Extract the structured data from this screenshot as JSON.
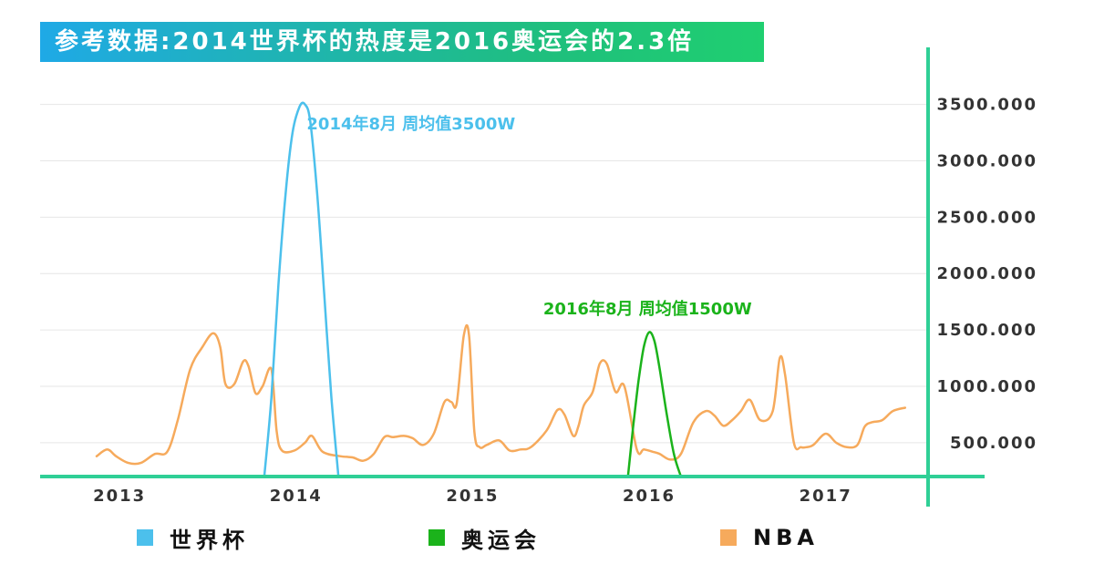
{
  "title": "参考数据:2014世界杯的热度是2016奥运会的2.3倍",
  "chart_data": {
    "type": "line",
    "y_ticks": [
      "500.000",
      "1000.000",
      "1500.000",
      "2000.000",
      "2500.000",
      "3000.000",
      "3500.000"
    ],
    "x_ticks": [
      {
        "label": "2013",
        "x": 2013.0
      },
      {
        "label": "2014",
        "x": 2014.0
      },
      {
        "label": "2015",
        "x": 2015.0
      },
      {
        "label": "2016",
        "x": 2016.0
      },
      {
        "label": "2017",
        "x": 2017.0
      }
    ],
    "xlim": [
      2012.55,
      2017.58
    ],
    "ylim": [
      200,
      3650
    ],
    "grid": true,
    "series": [
      {
        "name": "世界杯",
        "color": "#4cc0ec",
        "x": [
          2013.82,
          2013.86,
          2013.9,
          2013.94,
          2013.98,
          2014.02,
          2014.05,
          2014.08,
          2014.12,
          2014.16,
          2014.2,
          2014.24
        ],
        "y": [
          200,
          900,
          1900,
          2700,
          3250,
          3480,
          3500,
          3350,
          2700,
          1800,
          900,
          200
        ]
      },
      {
        "name": "奥运会",
        "color": "#1bb31b",
        "x": [
          2015.88,
          2015.91,
          2015.94,
          2015.97,
          2016.0,
          2016.03,
          2016.06,
          2016.1,
          2016.14,
          2016.18
        ],
        "y": [
          200,
          650,
          1050,
          1350,
          1480,
          1400,
          1150,
          750,
          400,
          200
        ]
      },
      {
        "name": "NBA",
        "color": "#f6aa5c",
        "x": [
          2012.87,
          2012.93,
          2012.98,
          2013.05,
          2013.12,
          2013.2,
          2013.27,
          2013.33,
          2013.4,
          2013.47,
          2013.53,
          2013.57,
          2013.6,
          2013.65,
          2013.7,
          2013.73,
          2013.77,
          2013.81,
          2013.86,
          2013.89,
          2013.92,
          2013.99,
          2014.05,
          2014.09,
          2014.15,
          2014.25,
          2014.32,
          2014.38,
          2014.44,
          2014.5,
          2014.55,
          2014.61,
          2014.66,
          2014.72,
          2014.78,
          2014.84,
          2014.88,
          2014.91,
          2014.95,
          2014.98,
          2015.01,
          2015.04,
          2015.08,
          2015.15,
          2015.21,
          2015.27,
          2015.33,
          2015.42,
          2015.48,
          2015.52,
          2015.57,
          2015.6,
          2015.63,
          2015.68,
          2015.72,
          2015.76,
          2015.81,
          2015.86,
          2015.93,
          2015.97,
          2016.02,
          2016.06,
          2016.12,
          2016.18,
          2016.25,
          2016.32,
          2016.37,
          2016.42,
          2016.47,
          2016.52,
          2016.57,
          2016.63,
          2016.7,
          2016.74,
          2016.77,
          2016.82,
          2016.86,
          2016.89,
          2016.93,
          2017.0,
          2017.06,
          2017.12,
          2017.18,
          2017.22,
          2017.26,
          2017.32,
          2017.38,
          2017.45
        ],
        "y": [
          380,
          440,
          380,
          320,
          320,
          400,
          420,
          700,
          1150,
          1350,
          1470,
          1350,
          1020,
          1020,
          1220,
          1180,
          940,
          1000,
          1150,
          600,
          430,
          430,
          500,
          560,
          420,
          380,
          370,
          340,
          400,
          550,
          550,
          560,
          540,
          480,
          580,
          860,
          860,
          850,
          1450,
          1450,
          600,
          460,
          480,
          520,
          430,
          440,
          460,
          610,
          790,
          750,
          560,
          650,
          830,
          950,
          1200,
          1200,
          950,
          1000,
          440,
          440,
          420,
          400,
          350,
          400,
          680,
          780,
          740,
          650,
          700,
          780,
          880,
          700,
          780,
          1250,
          1100,
          500,
          460,
          460,
          480,
          580,
          500,
          460,
          480,
          640,
          680,
          700,
          780,
          810
        ]
      }
    ],
    "annotations": [
      {
        "text": "2014年8月 周均值3500W",
        "x": 2014.06,
        "y": 3280,
        "color": "#4cc0ec"
      },
      {
        "text": "2016年8月 周均值1500W",
        "x": 2015.4,
        "y": 1640,
        "color": "#1bb31b"
      }
    ],
    "legend": [
      {
        "label": "世界杯",
        "color": "#4cc0ec"
      },
      {
        "label": "奥运会",
        "color": "#1bb31b"
      },
      {
        "label": "NBA",
        "color": "#f6aa5c"
      }
    ],
    "legend_placement": "bottom",
    "axis_color": "#2fcf96"
  }
}
